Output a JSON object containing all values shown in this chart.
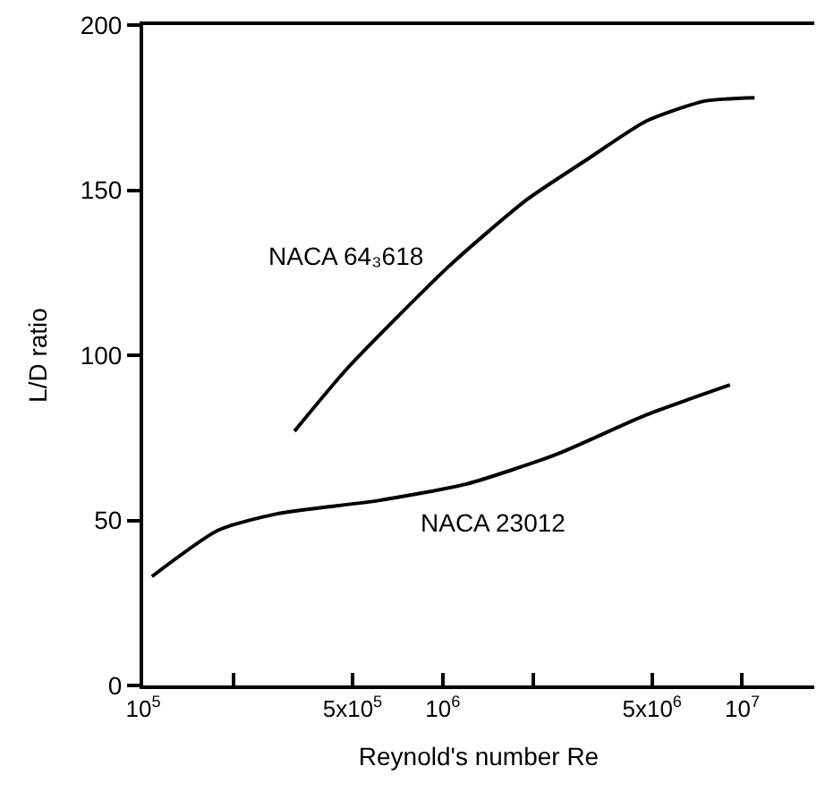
{
  "chart_data": {
    "type": "line",
    "xlabel": "Reynold's number Re",
    "ylabel": "L/D ratio",
    "log": "x",
    "xlim": [
      100000,
      17400000
    ],
    "xticks": [
      {
        "value": 100000,
        "label": "10$^{5}$"
      },
      {
        "value": 200000,
        "label": null
      },
      {
        "value": 500000,
        "label": "5x10$^{5}$"
      },
      {
        "value": 1000000,
        "label": "10$^{6}$"
      },
      {
        "value": 2000000,
        "label": null
      },
      {
        "value": 5000000,
        "label": "5x10$^{6}$"
      },
      {
        "value": 10000000,
        "label": "10$^{7}$"
      }
    ],
    "ylim": [
      0,
      200
    ],
    "yticks": [
      0,
      50,
      100,
      150,
      200
    ],
    "marker": "none",
    "line_style": "solid",
    "series": [
      {
        "name": "NACA 64₃618",
        "color": "#000000",
        "x": [
          320000,
          480000,
          1050000,
          1900000,
          3000000,
          4800000,
          7500000,
          11000000
        ],
        "values": [
          77,
          96,
          127,
          147,
          159,
          171,
          177,
          178
        ]
      },
      {
        "name": "NACA 23012",
        "color": "#000000",
        "x": [
          107000,
          178000,
          280000,
          610000,
          1200000,
          2400000,
          4800000,
          9100000
        ],
        "values": [
          33,
          47,
          52,
          56,
          61,
          70,
          82,
          91
        ]
      }
    ]
  }
}
